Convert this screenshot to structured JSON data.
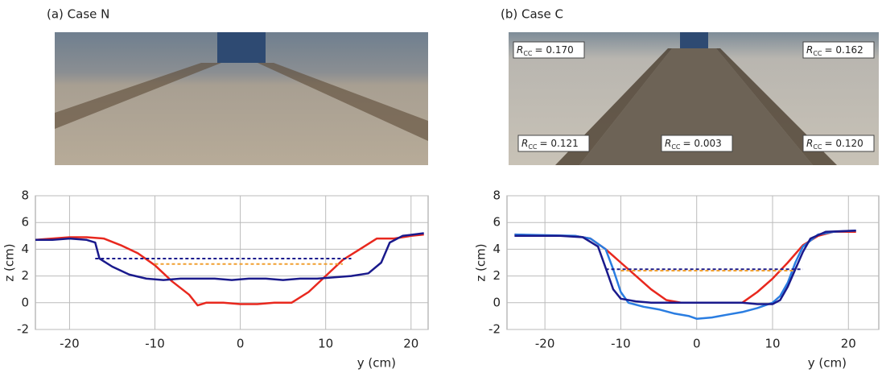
{
  "chart_data": [
    {
      "type": "line",
      "title": "(a) Case N",
      "xlabel": "y (cm)",
      "ylabel": "z (cm)",
      "xlim": [
        -24,
        22
      ],
      "ylim": [
        -2,
        8
      ],
      "xticks": [
        -20,
        -10,
        0,
        10,
        20
      ],
      "yticks": [
        -2,
        0,
        2,
        4,
        6,
        8
      ],
      "grid": true,
      "annotations": [],
      "series": [
        {
          "color": "#e8281e",
          "dash": false,
          "x": [
            -24,
            -22,
            -20,
            -18,
            -16,
            -14,
            -12,
            -10,
            -8,
            -6,
            -5,
            -4,
            -2,
            0,
            2,
            4,
            6,
            8,
            10,
            12,
            14,
            16,
            18,
            20,
            21.5
          ],
          "values": [
            4.7,
            4.8,
            4.9,
            4.9,
            4.8,
            4.3,
            3.7,
            2.8,
            1.6,
            0.6,
            -0.2,
            0,
            0,
            -0.1,
            -0.1,
            0,
            0,
            0.8,
            2,
            3.2,
            4,
            4.8,
            4.8,
            5,
            5.1
          ]
        },
        {
          "color": "#1a1a8c",
          "dash": false,
          "x": [
            -24,
            -22,
            -20,
            -18,
            -17,
            -16.5,
            -15,
            -13,
            -11,
            -9,
            -7,
            -5,
            -3,
            -1,
            1,
            3,
            5,
            7,
            9,
            11,
            13,
            15,
            16.5,
            17.5,
            19,
            21.5
          ],
          "values": [
            4.7,
            4.7,
            4.8,
            4.7,
            4.5,
            3.3,
            2.7,
            2.1,
            1.8,
            1.7,
            1.8,
            1.8,
            1.8,
            1.7,
            1.8,
            1.8,
            1.7,
            1.8,
            1.8,
            1.9,
            2,
            2.2,
            3,
            4.5,
            5,
            5.2
          ]
        },
        {
          "color": "#1a1a8c",
          "dash": true,
          "x": [
            -17,
            13
          ],
          "values": [
            3.3,
            3.3
          ]
        },
        {
          "color": "#f0a030",
          "dash": true,
          "x": [
            -10,
            12
          ],
          "values": [
            2.9,
            2.9
          ]
        }
      ]
    },
    {
      "type": "line",
      "title": "(b) Case C",
      "xlabel": "y (cm)",
      "ylabel": "z (cm)",
      "xlim": [
        -25,
        24
      ],
      "ylim": [
        -2,
        8
      ],
      "xticks": [
        -20,
        -10,
        0,
        10,
        20
      ],
      "yticks": [
        -2,
        0,
        2,
        4,
        6,
        8
      ],
      "grid": true,
      "annotations": [
        {
          "symbol": "R",
          "sub": "CC",
          "text": "= 0.170"
        },
        {
          "symbol": "R",
          "sub": "CC",
          "text": "= 0.162"
        },
        {
          "symbol": "R",
          "sub": "CC",
          "text": "= 0.121"
        },
        {
          "symbol": "R",
          "sub": "CC",
          "text": "= 0.003"
        },
        {
          "symbol": "R",
          "sub": "CC",
          "text": "= 0.120"
        }
      ],
      "series": [
        {
          "color": "#e8281e",
          "dash": false,
          "x": [
            -24,
            -20,
            -16,
            -14,
            -12,
            -10,
            -8,
            -6,
            -4,
            -2,
            0,
            2,
            4,
            6,
            8,
            10,
            12,
            14,
            16,
            18,
            21
          ],
          "values": [
            5.1,
            5.0,
            5.0,
            4.8,
            4.0,
            3.0,
            2.0,
            1.0,
            0.2,
            0,
            0,
            0,
            0,
            0,
            0.8,
            1.8,
            3,
            4.3,
            5,
            5.3,
            5.3
          ]
        },
        {
          "color": "#2a7de1",
          "dash": false,
          "x": [
            -24,
            -16,
            -14,
            -12,
            -11,
            -10,
            -9,
            -7,
            -5,
            -3,
            -1,
            0,
            2,
            4,
            6,
            8,
            10,
            11,
            12,
            13,
            14,
            16,
            18,
            21
          ],
          "values": [
            5.1,
            5.0,
            4.8,
            4.0,
            2.5,
            0.8,
            0,
            -0.3,
            -0.5,
            -0.8,
            -1.0,
            -1.2,
            -1.1,
            -0.9,
            -0.7,
            -0.4,
            0,
            0.5,
            1.5,
            3,
            4.2,
            5.1,
            5.3,
            5.4
          ]
        },
        {
          "color": "#1a1a8c",
          "dash": false,
          "x": [
            -24,
            -18,
            -15,
            -13,
            -12,
            -11,
            -10,
            -8,
            -6,
            -4,
            -2,
            0,
            2,
            4,
            6,
            8,
            10,
            11,
            12,
            13,
            14,
            15,
            17,
            21
          ],
          "values": [
            5.0,
            5.0,
            4.9,
            4.2,
            2.6,
            1,
            0.3,
            0.1,
            0,
            0,
            0,
            0,
            0,
            0,
            0,
            -0.1,
            -0.1,
            0.2,
            1.2,
            2.5,
            3.8,
            4.8,
            5.3,
            5.4
          ]
        },
        {
          "color": "#1a1a8c",
          "dash": true,
          "x": [
            -12,
            14
          ],
          "values": [
            2.5,
            2.5
          ]
        },
        {
          "color": "#f0a030",
          "dash": true,
          "x": [
            -10,
            13
          ],
          "values": [
            2.4,
            2.4
          ]
        }
      ]
    }
  ]
}
